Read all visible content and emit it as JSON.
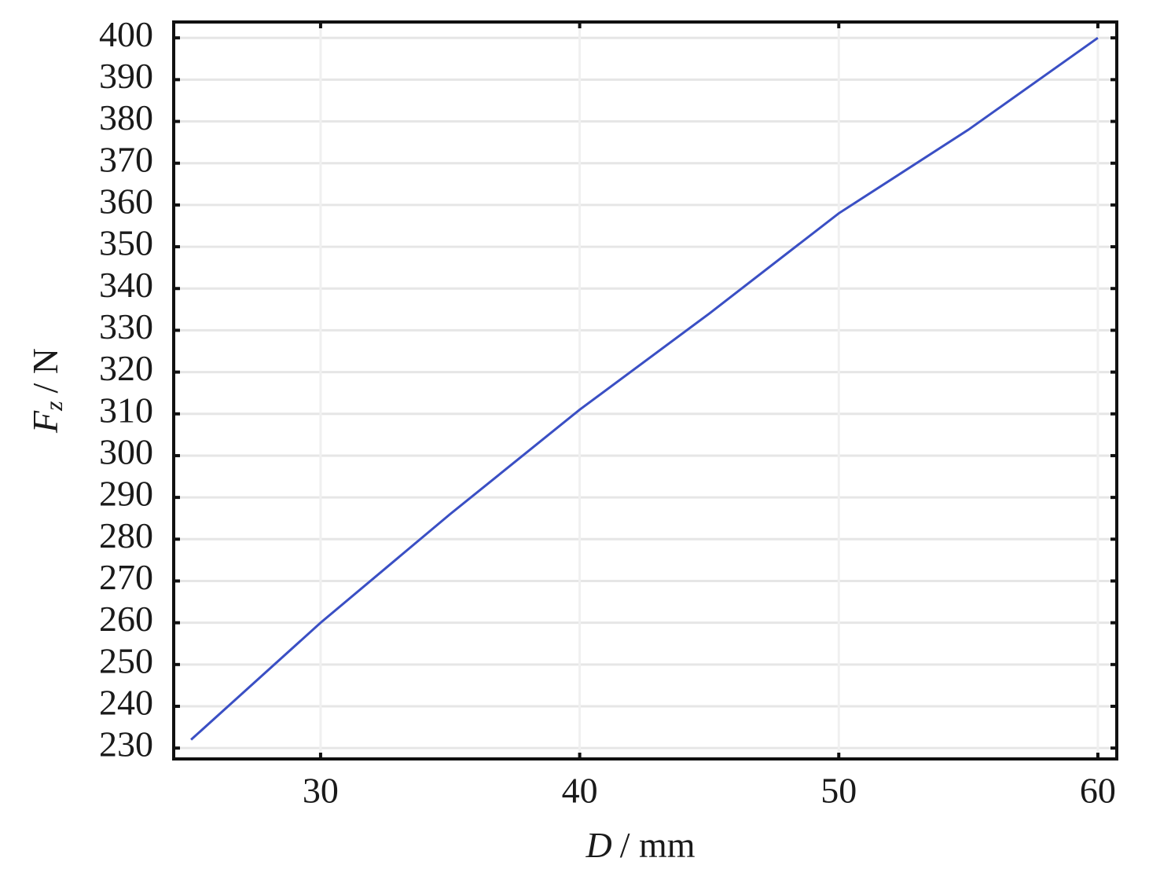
{
  "chart_data": {
    "type": "line",
    "x_label": {
      "symbol": "D",
      "unit": "/ mm"
    },
    "y_label": {
      "symbol": "F",
      "subscript": "z",
      "unit": "/ N"
    },
    "x": [
      25,
      30,
      35,
      40,
      45,
      50,
      55,
      60
    ],
    "series": [
      {
        "color": "#3a4fc4",
        "values": [
          232,
          260,
          286,
          311,
          334,
          358,
          378,
          400
        ]
      }
    ],
    "xlim": [
      24.33,
      60.73
    ],
    "ylim": [
      227.4,
      403.8
    ],
    "xticks": [
      30,
      40,
      50,
      60
    ],
    "yticks": [
      230,
      240,
      250,
      260,
      270,
      280,
      290,
      300,
      310,
      320,
      330,
      340,
      350,
      360,
      370,
      380,
      390,
      400
    ],
    "grid": true
  }
}
